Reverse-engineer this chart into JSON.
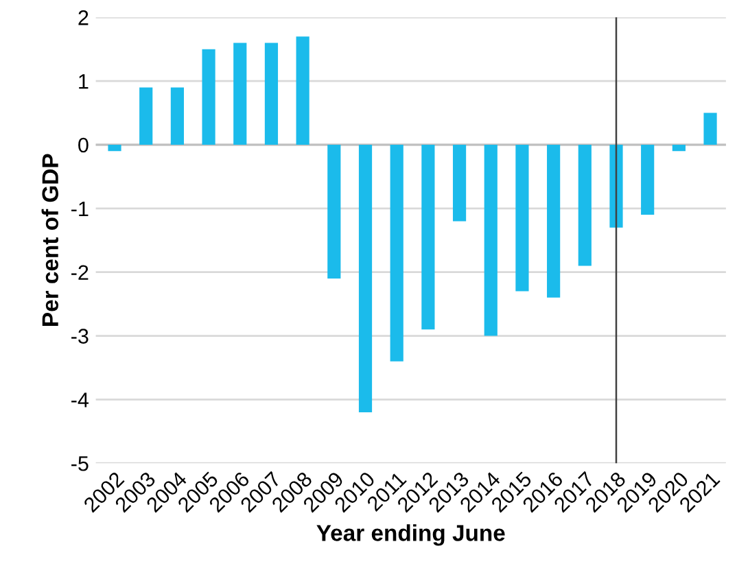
{
  "chart_data": {
    "type": "bar",
    "xlabel": "Year ending June",
    "ylabel": "Per cent of GDP",
    "categories": [
      "2002",
      "2003",
      "2004",
      "2005",
      "2006",
      "2007",
      "2008",
      "2009",
      "2010",
      "2011",
      "2012",
      "2013",
      "2014",
      "2015",
      "2016",
      "2017",
      "2018",
      "2019",
      "2020",
      "2021"
    ],
    "values": [
      -0.1,
      0.9,
      0.9,
      1.5,
      1.6,
      1.6,
      1.7,
      -2.1,
      -4.2,
      -3.4,
      -2.9,
      -1.2,
      -3.0,
      -2.3,
      -2.4,
      -1.9,
      -1.3,
      -1.1,
      -0.1,
      0.5
    ],
    "color": "#1bbbeb",
    "ylim": [
      -5,
      2
    ],
    "yticks": [
      -5,
      -4,
      -3,
      -2,
      -1,
      0,
      1,
      2
    ],
    "grid": "y",
    "ref_lines": [
      {
        "axis": "x",
        "value": "2018",
        "color": "#404040"
      }
    ]
  }
}
